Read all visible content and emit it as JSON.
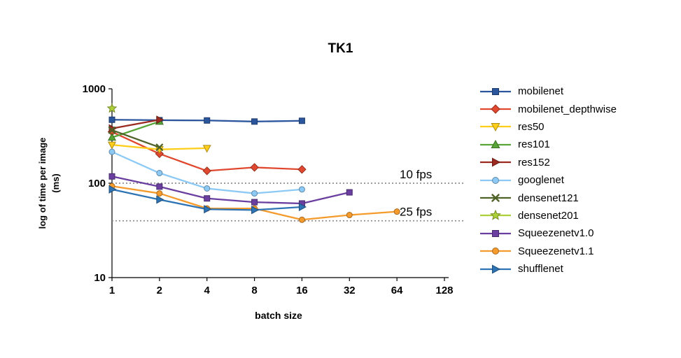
{
  "chart_data": {
    "type": "line",
    "title": "TK1",
    "xlabel": "batch size",
    "ylabel": "log of time per image (ms)",
    "ylabel_lines": [
      "log of time per image",
      "(ms)"
    ],
    "x_scale": "log2",
    "y_scale": "log10",
    "x_ticks": [
      1,
      2,
      4,
      8,
      16,
      32,
      64,
      128
    ],
    "y_ticks": [
      10,
      100,
      1000
    ],
    "xlim": [
      1,
      128
    ],
    "ylim": [
      10,
      1000
    ],
    "grid": "off",
    "legend_position": "right",
    "reference_lines": [
      {
        "label": "10 fps",
        "y_ms": 100
      },
      {
        "label": "25 fps",
        "y_ms": 40
      }
    ],
    "reference_line_color": "#8f8f8f",
    "axis_color": "#000000",
    "series": [
      {
        "name": "mobilenet",
        "color": "#2B569E",
        "marker": "square",
        "x": [
          1,
          2,
          4,
          8,
          16
        ],
        "y": [
          470,
          465,
          462,
          450,
          458
        ]
      },
      {
        "name": "mobilenet_depthwise",
        "color": "#E0482F",
        "marker": "diamond",
        "x": [
          1,
          2,
          4,
          8,
          16
        ],
        "y": [
          350,
          205,
          135,
          147,
          140
        ]
      },
      {
        "name": "res50",
        "color": "#FFCE1B",
        "marker": "triangle-down",
        "x": [
          1,
          2,
          4
        ],
        "y": [
          255,
          228,
          235
        ]
      },
      {
        "name": "res101",
        "color": "#57A437",
        "marker": "triangle-up",
        "x": [
          1,
          2
        ],
        "y": [
          305,
          450
        ]
      },
      {
        "name": "res152",
        "color": "#9B2A21",
        "marker": "triangle-right",
        "x": [
          1,
          2
        ],
        "y": [
          380,
          470
        ]
      },
      {
        "name": "googlenet",
        "color": "#8CC9F4",
        "marker": "circle",
        "x": [
          1,
          2,
          4,
          8,
          16
        ],
        "y": [
          215,
          128,
          88,
          78,
          86
        ]
      },
      {
        "name": "densenet121",
        "color": "#4F6228",
        "marker": "x",
        "x": [
          1,
          2
        ],
        "y": [
          365,
          240
        ]
      },
      {
        "name": "densenet201",
        "color": "#ADCF37",
        "marker": "star",
        "x": [
          1
        ],
        "y": [
          620
        ]
      },
      {
        "name": "Squeezenetv1.0",
        "color": "#6A3FA0",
        "marker": "square",
        "x": [
          1,
          2,
          4,
          8,
          16,
          32
        ],
        "y": [
          118,
          92,
          69,
          63,
          61,
          80
        ]
      },
      {
        "name": "Squeezenetv1.1",
        "color": "#F59B2D",
        "marker": "circle",
        "x": [
          1,
          2,
          4,
          8,
          16,
          32,
          64
        ],
        "y": [
          93,
          78,
          54,
          54,
          41,
          46,
          50
        ]
      },
      {
        "name": "shufflenet",
        "color": "#2E74B5",
        "marker": "triangle-right",
        "x": [
          1,
          2,
          4,
          8,
          16
        ],
        "y": [
          86,
          67,
          53,
          52,
          56
        ]
      }
    ]
  }
}
